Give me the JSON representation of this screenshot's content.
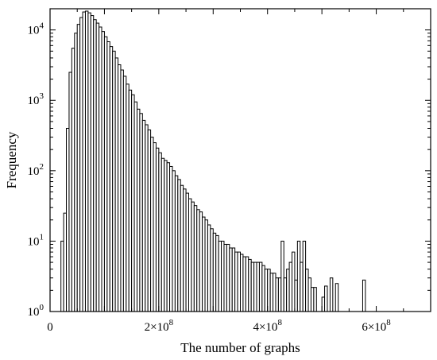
{
  "chart_data": {
    "type": "bar",
    "title": "",
    "xlabel": "The number of graphs",
    "ylabel": "Frequency",
    "x_scale": "linear",
    "y_scale": "log",
    "xlim": [
      0,
      700000000
    ],
    "ylim": [
      1,
      20000
    ],
    "grid": false,
    "legend": "none",
    "bin_width": 5000000,
    "x_ticks": [
      {
        "value": 200000000,
        "mantissa": "2×10",
        "exp": "8"
      },
      {
        "value": 400000000,
        "mantissa": "4×10",
        "exp": "8"
      },
      {
        "value": 600000000,
        "mantissa": "6×10",
        "exp": "8"
      }
    ],
    "y_ticks": [
      {
        "value": 1,
        "base": "10",
        "exp": "0"
      },
      {
        "value": 10,
        "base": "10",
        "exp": "1"
      },
      {
        "value": 100,
        "base": "10",
        "exp": "2"
      },
      {
        "value": 1000,
        "base": "10",
        "exp": "3"
      },
      {
        "value": 10000,
        "base": "10",
        "exp": "4"
      }
    ],
    "bins_x": [
      20000000,
      25000000,
      30000000,
      35000000,
      40000000,
      45000000,
      50000000,
      55000000,
      60000000,
      65000000,
      70000000,
      75000000,
      80000000,
      85000000,
      90000000,
      95000000,
      100000000,
      105000000,
      110000000,
      115000000,
      120000000,
      125000000,
      130000000,
      135000000,
      140000000,
      145000000,
      150000000,
      155000000,
      160000000,
      165000000,
      170000000,
      175000000,
      180000000,
      185000000,
      190000000,
      195000000,
      200000000,
      205000000,
      210000000,
      215000000,
      220000000,
      225000000,
      230000000,
      235000000,
      240000000,
      245000000,
      250000000,
      255000000,
      260000000,
      265000000,
      270000000,
      275000000,
      280000000,
      285000000,
      290000000,
      295000000,
      300000000,
      305000000,
      310000000,
      315000000,
      320000000,
      325000000,
      330000000,
      335000000,
      340000000,
      345000000,
      350000000,
      355000000,
      360000000,
      365000000,
      370000000,
      375000000,
      380000000,
      385000000,
      390000000,
      395000000,
      400000000,
      405000000,
      410000000,
      415000000,
      420000000,
      425000000,
      430000000,
      435000000,
      440000000,
      445000000,
      450000000,
      455000000,
      460000000,
      465000000,
      470000000,
      475000000,
      480000000,
      485000000,
      500000000,
      505000000,
      515000000,
      525000000,
      575000000
    ],
    "values": [
      10,
      25,
      400,
      2500,
      5500,
      9000,
      12000,
      15000,
      18000,
      18500,
      17500,
      16000,
      14000,
      12500,
      11000,
      9500,
      8000,
      6800,
      5800,
      5000,
      4000,
      3200,
      2700,
      2200,
      1700,
      1400,
      1200,
      950,
      750,
      650,
      520,
      450,
      380,
      300,
      250,
      210,
      180,
      150,
      140,
      130,
      115,
      100,
      85,
      75,
      62,
      55,
      48,
      40,
      36,
      32,
      28,
      26,
      22,
      20,
      17,
      15,
      13,
      12,
      10,
      10,
      9,
      9,
      8,
      8,
      7,
      7,
      6.5,
      6,
      6,
      5.5,
      5,
      5,
      5,
      5,
      4.5,
      4,
      4,
      3.5,
      3.5,
      3,
      3,
      10,
      3,
      4,
      5,
      7,
      2.8,
      10,
      5,
      10,
      4,
      3,
      2.2,
      2.2,
      1.6,
      2.3,
      3,
      2.5,
      2.8
    ]
  }
}
